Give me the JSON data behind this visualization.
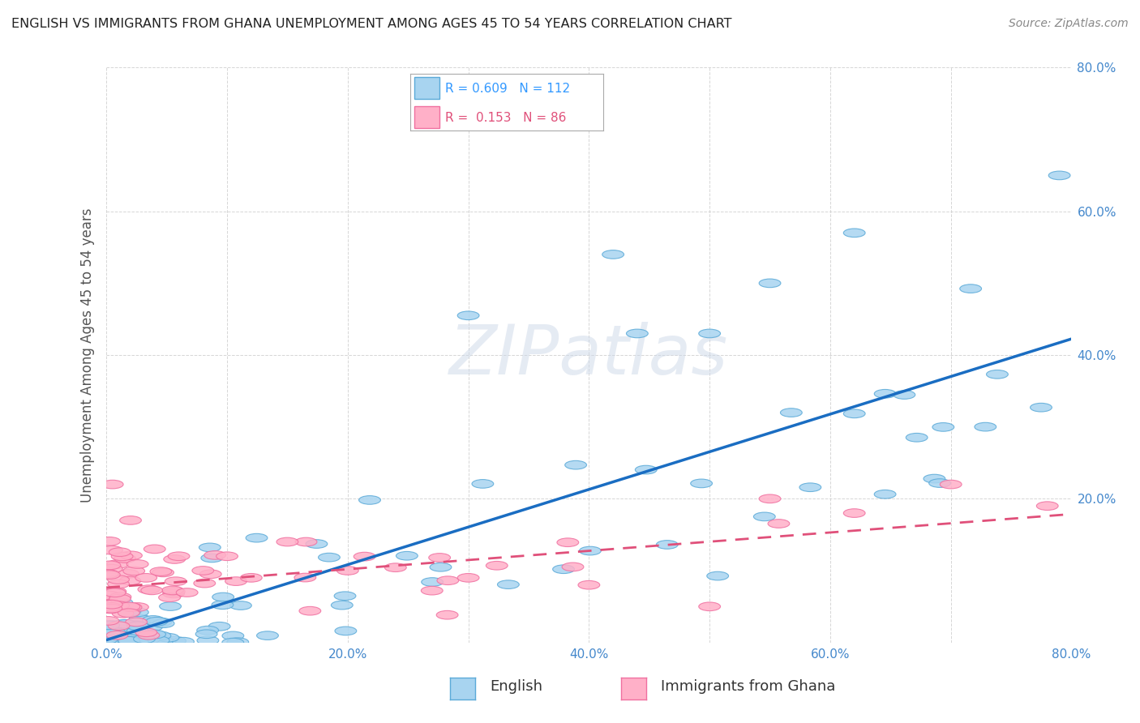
{
  "title": "ENGLISH VS IMMIGRANTS FROM GHANA UNEMPLOYMENT AMONG AGES 45 TO 54 YEARS CORRELATION CHART",
  "source": "Source: ZipAtlas.com",
  "xlabel_english": "English",
  "xlabel_ghana": "Immigrants from Ghana",
  "ylabel": "Unemployment Among Ages 45 to 54 years",
  "xlim": [
    0.0,
    0.8
  ],
  "ylim": [
    0.0,
    0.8
  ],
  "xtick_labels": [
    "0.0%",
    "",
    "20.0%",
    "",
    "40.0%",
    "",
    "60.0%",
    "",
    "80.0%"
  ],
  "xtick_vals": [
    0.0,
    0.1,
    0.2,
    0.3,
    0.4,
    0.5,
    0.6,
    0.7,
    0.8
  ],
  "ytick_labels": [
    "",
    "20.0%",
    "40.0%",
    "60.0%",
    "80.0%"
  ],
  "ytick_vals": [
    0.0,
    0.2,
    0.4,
    0.6,
    0.8
  ],
  "english_color": "#a8d4f0",
  "ghana_color": "#ffb0c8",
  "english_edge_color": "#5baad8",
  "ghana_edge_color": "#f070a0",
  "english_R": 0.609,
  "english_N": 112,
  "ghana_R": 0.153,
  "ghana_N": 86,
  "english_line_color": "#1a6dc2",
  "ghana_line_color": "#e0507a",
  "watermark": "ZIPatlas",
  "background_color": "#ffffff",
  "grid_color": "#cccccc",
  "legend_R_color": "#3399ff",
  "legend_N_color": "#3399ff"
}
